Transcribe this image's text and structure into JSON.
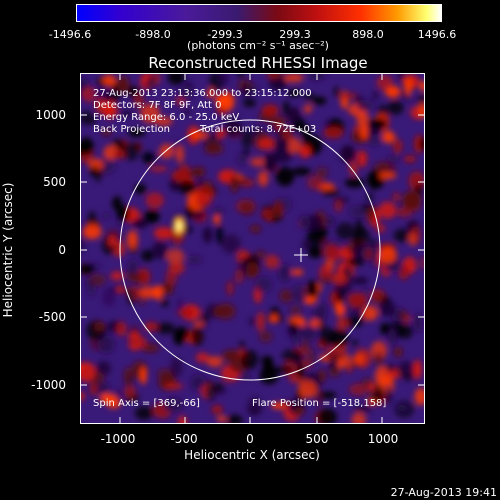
{
  "colorbar": {
    "tick_labels": [
      "-1496.6",
      "-898.0",
      "-299.3",
      "299.3",
      "898.0",
      "1496.6"
    ],
    "units": "(photons cm⁻² s⁻¹ asec⁻²)"
  },
  "title": "Reconstructed RHESSI Image",
  "overlay": {
    "line1": "27-Aug-2013 23:13:36.000 to 23:15:12.000",
    "line2": "Detectors: 7F 8F 9F, Att 0",
    "line3": "Energy Range: 6.0 - 25.0 keV",
    "line4a": "Back Projection",
    "line4b": "Total counts: 8.72E+03",
    "spin_axis": "Spin Axis = [369,-66]",
    "flare_position": "Flare Position = [-518,158]"
  },
  "axes": {
    "x_label": "Heliocentric X (arcsec)",
    "y_label": "Heliocentric Y (arcsec)",
    "x_ticks": [
      "-1000",
      "-500",
      "0",
      "500",
      "1000"
    ],
    "y_ticks": [
      "1000",
      "500",
      "0",
      "-500",
      "-1000"
    ],
    "x_range": [
      -1300,
      1300
    ],
    "y_range": [
      -1300,
      1300
    ]
  },
  "timestamp": "27-Aug-2013 19:41",
  "colors": {
    "background": "#000000",
    "image_base": "#3a1a78",
    "limb_circle": "#ffffff"
  }
}
